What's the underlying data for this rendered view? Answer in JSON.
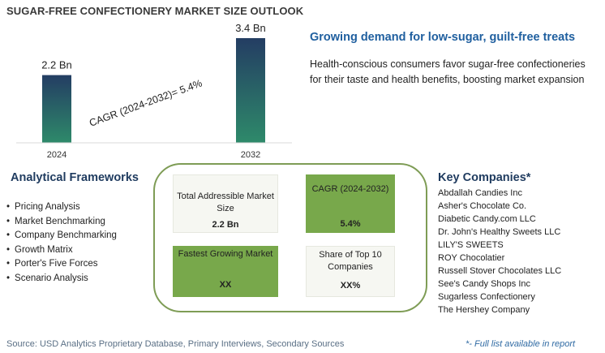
{
  "title": "SUGAR-FREE CONFECTIONERY MARKET SIZE OUTLOOK",
  "chart_data": {
    "type": "bar",
    "categories": [
      "2024",
      "2032"
    ],
    "values": [
      2.2,
      3.4
    ],
    "value_labels": [
      "2.2 Bn",
      "3.4 Bn"
    ],
    "annotation": "CAGR (2024-2032)=  5.4%",
    "colors": {
      "bar_bottom": "#2e8a6a",
      "bar_top": "#243d63"
    }
  },
  "headline": "Growing demand for low-sugar, guilt-free treats",
  "description": "Health-conscious consumers favor sugar-free confectioneries for their taste and health benefits, boosting market expansion",
  "frameworks": {
    "title": "Analytical Frameworks",
    "items": [
      "Pricing Analysis",
      "Market Benchmarking",
      "Company Benchmarking",
      "Growth Matrix",
      "Porter's Five Forces",
      "Scenario Analysis"
    ]
  },
  "metrics": {
    "tam": {
      "label": "Total Addressible Market Size",
      "value": "2.2 Bn"
    },
    "cagr": {
      "label": "CAGR (2024-2032)",
      "value": "5.4%"
    },
    "fastest": {
      "label": "Fastest Growing Market",
      "value": "XX"
    },
    "share": {
      "label": "Share of Top 10 Companies",
      "value": "XX%"
    }
  },
  "companies": {
    "title": "Key Companies*",
    "items": [
      "Abdallah Candies Inc",
      "Asher's Chocolate Co.",
      "Diabetic Candy.com LLC",
      "Dr. John's Healthy Sweets LLC",
      "LILY'S SWEETS",
      "ROY Chocolatier",
      "Russell Stover Chocolates LLC",
      "See's Candy Shops Inc",
      "Sugarless Confectionery",
      "The Hershey Company"
    ]
  },
  "source": "Source: USD Analytics Proprietary Database, Primary Interviews, Secondary Sources",
  "footnote": "*- Full list available in report",
  "colors": {
    "heading_blue": "#1f5f9f",
    "navy": "#1f3b5f",
    "panel_border": "#7e9c55",
    "card_green": "#78a84b",
    "card_light": "#f6f7f2"
  }
}
